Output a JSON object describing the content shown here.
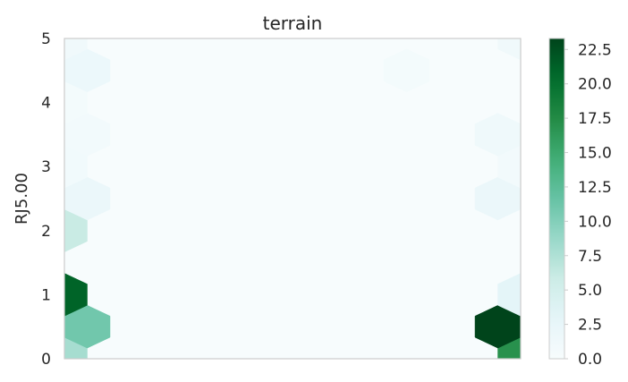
{
  "chart_data": {
    "type": "hexbin",
    "title": "terrain",
    "xlabel": "",
    "ylabel": "RJ5.00",
    "xlim": [
      0,
      5
    ],
    "ylim": [
      0,
      5
    ],
    "yticks": [
      "0",
      "1",
      "2",
      "3",
      "4",
      "5"
    ],
    "xticks": [],
    "grid": false,
    "colormap": "BuGn",
    "colorbar": {
      "min": 0,
      "max": 23.3,
      "ticks": [
        "0.0",
        "2.5",
        "5.0",
        "7.5",
        "10.0",
        "12.5",
        "15.0",
        "17.5",
        "20.0",
        "22.5"
      ]
    },
    "background_count": 0,
    "bins": [
      {
        "x": 0,
        "y": 0,
        "count": 8
      },
      {
        "x": 0.25,
        "y": 0.5,
        "count": 11
      },
      {
        "x": 0,
        "y": 1,
        "count": 21
      },
      {
        "x": 0,
        "y": 2,
        "count": 6
      },
      {
        "x": 0.25,
        "y": 2.5,
        "count": 2
      },
      {
        "x": 0,
        "y": 3,
        "count": 1
      },
      {
        "x": 0.25,
        "y": 3.5,
        "count": 0.8
      },
      {
        "x": 0,
        "y": 4,
        "count": 0.6
      },
      {
        "x": 0.25,
        "y": 4.5,
        "count": 1.8
      },
      {
        "x": 0,
        "y": 5,
        "count": 1.2
      },
      {
        "x": 5,
        "y": 0,
        "count": 17
      },
      {
        "x": 4.75,
        "y": 0.5,
        "count": 23.3
      },
      {
        "x": 5,
        "y": 1,
        "count": 3
      },
      {
        "x": 4.75,
        "y": 2.5,
        "count": 2
      },
      {
        "x": 5,
        "y": 3,
        "count": 0.8
      },
      {
        "x": 4.75,
        "y": 3.5,
        "count": 1.3
      },
      {
        "x": 3.75,
        "y": 4.5,
        "count": 0.6
      },
      {
        "x": 5,
        "y": 5,
        "count": 1.2
      }
    ]
  }
}
